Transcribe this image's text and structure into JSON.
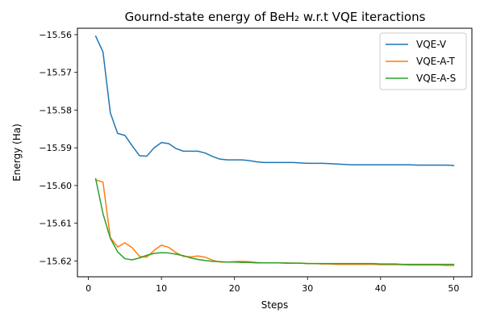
{
  "chart_data": {
    "type": "line",
    "title": "Gournd-state energy of BeH₂ w.r.t VQE iteractions",
    "xlabel": "Steps",
    "ylabel": "Energy (Ha)",
    "xlim": [
      -1.5,
      52.5
    ],
    "ylim": [
      -15.6242,
      -15.5583
    ],
    "x_ticks": [
      0,
      10,
      20,
      30,
      40,
      50
    ],
    "y_ticks": [
      -15.56,
      -15.57,
      -15.58,
      -15.59,
      -15.6,
      -15.61,
      -15.62
    ],
    "x_tick_labels": [
      "0",
      "10",
      "20",
      "30",
      "40",
      "50"
    ],
    "y_tick_labels": [
      "−15.56",
      "−15.57",
      "−15.58",
      "−15.59",
      "−15.60",
      "−15.61",
      "−15.62"
    ],
    "grid": false,
    "legend_position": "top-right",
    "x": [
      1,
      2,
      3,
      4,
      5,
      6,
      7,
      8,
      9,
      10,
      11,
      12,
      13,
      14,
      15,
      16,
      17,
      18,
      19,
      20,
      21,
      22,
      23,
      24,
      25,
      26,
      27,
      28,
      29,
      30,
      31,
      32,
      33,
      34,
      35,
      36,
      37,
      38,
      39,
      40,
      41,
      42,
      43,
      44,
      45,
      46,
      47,
      48,
      49,
      50
    ],
    "series": [
      {
        "name": "VQE-V",
        "color": "#1f77b4",
        "values": [
          -15.5604,
          -15.5646,
          -15.5807,
          -15.5862,
          -15.5867,
          -15.5895,
          -15.5921,
          -15.5922,
          -15.59,
          -15.5886,
          -15.5889,
          -15.5902,
          -15.5909,
          -15.5909,
          -15.5909,
          -15.5914,
          -15.5923,
          -15.593,
          -15.5932,
          -15.5932,
          -15.5932,
          -15.5934,
          -15.5937,
          -15.5939,
          -15.5939,
          -15.5939,
          -15.5939,
          -15.5939,
          -15.594,
          -15.5941,
          -15.5941,
          -15.5941,
          -15.5942,
          -15.5943,
          -15.5944,
          -15.5945,
          -15.5945,
          -15.5945,
          -15.5945,
          -15.5945,
          -15.5945,
          -15.5945,
          -15.5945,
          -15.5945,
          -15.5946,
          -15.5946,
          -15.5946,
          -15.5946,
          -15.5946,
          -15.5947
        ]
      },
      {
        "name": "VQE-A-T",
        "color": "#ff7f0e",
        "values": [
          -15.5985,
          -15.5991,
          -15.6138,
          -15.6163,
          -15.6152,
          -15.6165,
          -15.6188,
          -15.619,
          -15.6172,
          -15.6158,
          -15.6164,
          -15.6178,
          -15.6188,
          -15.6189,
          -15.6187,
          -15.619,
          -15.6198,
          -15.6203,
          -15.6203,
          -15.6202,
          -15.6201,
          -15.6202,
          -15.6204,
          -15.6205,
          -15.6205,
          -15.6205,
          -15.6205,
          -15.6206,
          -15.6206,
          -15.6207,
          -15.6207,
          -15.6208,
          -15.6208,
          -15.6209,
          -15.6209,
          -15.6209,
          -15.6209,
          -15.6209,
          -15.6209,
          -15.621,
          -15.621,
          -15.621,
          -15.621,
          -15.6211,
          -15.6211,
          -15.6211,
          -15.6211,
          -15.6211,
          -15.6212,
          -15.6212
        ]
      },
      {
        "name": "VQE-A-S",
        "color": "#2ca02c",
        "values": [
          -15.5982,
          -15.6075,
          -15.614,
          -15.6176,
          -15.6194,
          -15.6197,
          -15.6192,
          -15.6185,
          -15.618,
          -15.6178,
          -15.6179,
          -15.6182,
          -15.6186,
          -15.6192,
          -15.6196,
          -15.6199,
          -15.6201,
          -15.6202,
          -15.6203,
          -15.6203,
          -15.6204,
          -15.6204,
          -15.6205,
          -15.6205,
          -15.6205,
          -15.6205,
          -15.6206,
          -15.6206,
          -15.6206,
          -15.6207,
          -15.6207,
          -15.6207,
          -15.6207,
          -15.6207,
          -15.6207,
          -15.6207,
          -15.6207,
          -15.6207,
          -15.6207,
          -15.6208,
          -15.6208,
          -15.6208,
          -15.6209,
          -15.6209,
          -15.6209,
          -15.6209,
          -15.6209,
          -15.6209,
          -15.6209,
          -15.6209
        ]
      }
    ]
  }
}
